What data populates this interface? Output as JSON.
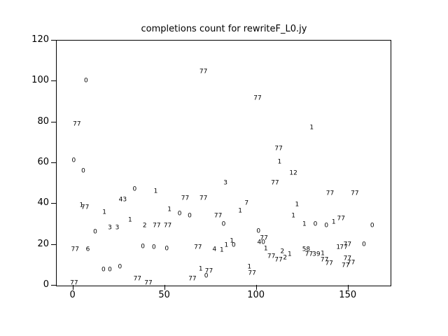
{
  "chart_data": {
    "type": "scatter",
    "title": "completions count for rewriteF_L0.jy",
    "xlabel": "",
    "ylabel": "",
    "xlim": [
      -9,
      173
    ],
    "ylim": [
      0,
      120
    ],
    "x_ticks": [
      0,
      50,
      100,
      150
    ],
    "y_ticks": [
      0,
      20,
      40,
      60,
      80,
      100,
      120
    ],
    "grid": false,
    "legend": "none",
    "marker": "text-label",
    "points": [
      {
        "x": 0.3,
        "y": 61,
        "label": "0"
      },
      {
        "x": 0.5,
        "y": 1,
        "label": "77"
      },
      {
        "x": 1,
        "y": 17.5,
        "label": "77"
      },
      {
        "x": 2,
        "y": 79,
        "label": "77"
      },
      {
        "x": 4.5,
        "y": 39,
        "label": "1"
      },
      {
        "x": 5.5,
        "y": 56,
        "label": "0"
      },
      {
        "x": 6.5,
        "y": 38,
        "label": "77"
      },
      {
        "x": 7,
        "y": 100,
        "label": "0"
      },
      {
        "x": 8,
        "y": 17.5,
        "label": "6"
      },
      {
        "x": 12,
        "y": 26,
        "label": "0"
      },
      {
        "x": 16.5,
        "y": 7.5,
        "label": "0"
      },
      {
        "x": 17,
        "y": 35.5,
        "label": "1"
      },
      {
        "x": 20,
        "y": 7.5,
        "label": "0"
      },
      {
        "x": 20,
        "y": 28,
        "label": "3"
      },
      {
        "x": 24,
        "y": 28,
        "label": "3"
      },
      {
        "x": 25.5,
        "y": 9,
        "label": "0"
      },
      {
        "x": 27,
        "y": 42,
        "label": "43"
      },
      {
        "x": 31,
        "y": 32,
        "label": "1"
      },
      {
        "x": 33.5,
        "y": 47,
        "label": "0"
      },
      {
        "x": 35,
        "y": 3,
        "label": "77"
      },
      {
        "x": 38,
        "y": 19,
        "label": "0"
      },
      {
        "x": 39,
        "y": 29,
        "label": "2"
      },
      {
        "x": 41,
        "y": 1,
        "label": "77"
      },
      {
        "x": 44,
        "y": 18.5,
        "label": "0"
      },
      {
        "x": 45,
        "y": 46,
        "label": "1"
      },
      {
        "x": 45.5,
        "y": 29,
        "label": "77"
      },
      {
        "x": 51,
        "y": 18,
        "label": "0"
      },
      {
        "x": 51.5,
        "y": 29,
        "label": "77"
      },
      {
        "x": 52.5,
        "y": 37,
        "label": "1"
      },
      {
        "x": 58,
        "y": 35,
        "label": "0"
      },
      {
        "x": 61,
        "y": 42.5,
        "label": "77"
      },
      {
        "x": 63.5,
        "y": 34,
        "label": "0"
      },
      {
        "x": 65,
        "y": 3,
        "label": "77"
      },
      {
        "x": 68,
        "y": 18.5,
        "label": "77"
      },
      {
        "x": 69.5,
        "y": 8,
        "label": "1"
      },
      {
        "x": 71,
        "y": 104.5,
        "label": "77"
      },
      {
        "x": 71,
        "y": 42.5,
        "label": "77"
      },
      {
        "x": 72.5,
        "y": 4.5,
        "label": "0"
      },
      {
        "x": 74,
        "y": 7,
        "label": "77"
      },
      {
        "x": 77,
        "y": 17.5,
        "label": "4"
      },
      {
        "x": 79,
        "y": 34,
        "label": "77"
      },
      {
        "x": 81,
        "y": 17,
        "label": "1"
      },
      {
        "x": 82,
        "y": 30,
        "label": "0"
      },
      {
        "x": 83,
        "y": 50,
        "label": "3"
      },
      {
        "x": 83.5,
        "y": 19.5,
        "label": "1"
      },
      {
        "x": 86.5,
        "y": 21.5,
        "label": "1"
      },
      {
        "x": 87.5,
        "y": 19.5,
        "label": "0"
      },
      {
        "x": 91,
        "y": 36.5,
        "label": "1"
      },
      {
        "x": 94.5,
        "y": 40,
        "label": "7"
      },
      {
        "x": 96,
        "y": 9,
        "label": "1"
      },
      {
        "x": 97.5,
        "y": 6,
        "label": "77"
      },
      {
        "x": 100.5,
        "y": 91.5,
        "label": "77"
      },
      {
        "x": 101,
        "y": 26.5,
        "label": "0"
      },
      {
        "x": 102.5,
        "y": 21,
        "label": "40"
      },
      {
        "x": 104,
        "y": 23,
        "label": "77"
      },
      {
        "x": 105,
        "y": 18,
        "label": "1"
      },
      {
        "x": 108,
        "y": 14,
        "label": "77"
      },
      {
        "x": 110,
        "y": 50,
        "label": "77"
      },
      {
        "x": 112,
        "y": 67,
        "label": "77"
      },
      {
        "x": 112.5,
        "y": 60.5,
        "label": "1"
      },
      {
        "x": 112,
        "y": 12.5,
        "label": "77"
      },
      {
        "x": 114,
        "y": 16.5,
        "label": "2"
      },
      {
        "x": 115.5,
        "y": 13.5,
        "label": "2"
      },
      {
        "x": 118,
        "y": 15,
        "label": "1"
      },
      {
        "x": 120,
        "y": 55,
        "label": "12"
      },
      {
        "x": 120,
        "y": 34,
        "label": "1"
      },
      {
        "x": 122,
        "y": 39.5,
        "label": "1"
      },
      {
        "x": 126,
        "y": 30,
        "label": "1"
      },
      {
        "x": 127,
        "y": 17.5,
        "label": "58"
      },
      {
        "x": 128.5,
        "y": 15,
        "label": "77"
      },
      {
        "x": 130,
        "y": 77,
        "label": "1"
      },
      {
        "x": 132,
        "y": 30,
        "label": "0"
      },
      {
        "x": 132.5,
        "y": 15,
        "label": "39"
      },
      {
        "x": 136,
        "y": 15.5,
        "label": "1"
      },
      {
        "x": 137,
        "y": 12.5,
        "label": "77"
      },
      {
        "x": 138,
        "y": 29,
        "label": "0"
      },
      {
        "x": 139.5,
        "y": 10.5,
        "label": "77"
      },
      {
        "x": 140,
        "y": 45,
        "label": "77"
      },
      {
        "x": 142,
        "y": 31,
        "label": "1"
      },
      {
        "x": 144.5,
        "y": 18.5,
        "label": "1"
      },
      {
        "x": 146,
        "y": 32.5,
        "label": "77"
      },
      {
        "x": 147.5,
        "y": 18.5,
        "label": "77"
      },
      {
        "x": 149.5,
        "y": 20,
        "label": "77"
      },
      {
        "x": 149.5,
        "y": 13,
        "label": "77"
      },
      {
        "x": 148.5,
        "y": 9.5,
        "label": "77"
      },
      {
        "x": 151.5,
        "y": 11,
        "label": "77"
      },
      {
        "x": 153.5,
        "y": 45,
        "label": "77"
      },
      {
        "x": 158.5,
        "y": 20,
        "label": "0"
      },
      {
        "x": 163,
        "y": 29,
        "label": "0"
      }
    ]
  }
}
